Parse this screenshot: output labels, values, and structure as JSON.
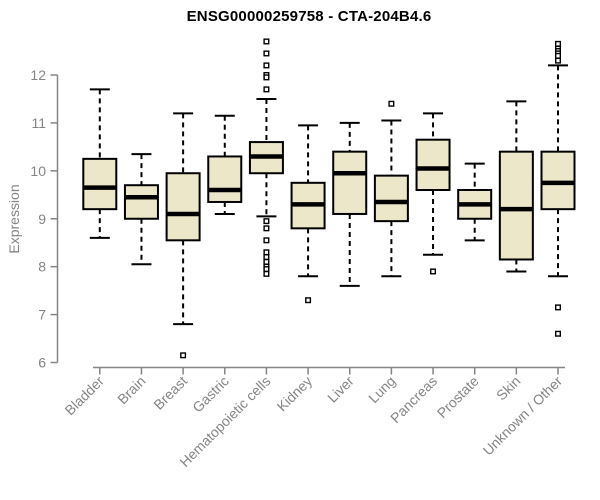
{
  "chart_data": {
    "type": "boxplot",
    "title": "ENSG00000259758 - CTA-204B4.6",
    "ylabel": "Expression",
    "xlabel": "",
    "ylim": [
      6,
      12.8
    ],
    "yticks": [
      6,
      7,
      8,
      9,
      10,
      11,
      12
    ],
    "grid": false,
    "legend": false,
    "colors": {
      "box_fill": "#ECE7C8",
      "box_stroke": "#000000",
      "median": "#000000",
      "axis": "#858585",
      "tick_label": "#858585",
      "title": "#000000",
      "outlier_fill": "#ffffff"
    },
    "categories": [
      "Bladder",
      "Brain",
      "Breast",
      "Gastric",
      "Hematopoietic cells",
      "Kidney",
      "Liver",
      "Lung",
      "Pancreas",
      "Prostate",
      "Skin",
      "Unknown / Other"
    ],
    "series": [
      {
        "category": "Bladder",
        "low": 8.6,
        "q1": 9.2,
        "median": 9.65,
        "q3": 10.25,
        "high": 11.7,
        "outliers": []
      },
      {
        "category": "Brain",
        "low": 8.05,
        "q1": 9.0,
        "median": 9.45,
        "q3": 9.7,
        "high": 10.35,
        "outliers": []
      },
      {
        "category": "Breast",
        "low": 6.8,
        "q1": 8.55,
        "median": 9.1,
        "q3": 9.95,
        "high": 11.2,
        "outliers": [
          6.15
        ]
      },
      {
        "category": "Gastric",
        "low": 9.1,
        "q1": 9.35,
        "median": 9.6,
        "q3": 10.3,
        "high": 11.15,
        "outliers": []
      },
      {
        "category": "Hematopoietic cells",
        "low": 9.05,
        "q1": 9.95,
        "median": 10.3,
        "q3": 10.6,
        "high": 11.5,
        "outliers": [
          12.7,
          12.45,
          12.2,
          12.0,
          11.95,
          11.7,
          8.95,
          8.8,
          8.55,
          8.3,
          8.2,
          8.1,
          8.0,
          7.95,
          7.85
        ]
      },
      {
        "category": "Kidney",
        "low": 7.8,
        "q1": 8.8,
        "median": 9.3,
        "q3": 9.75,
        "high": 10.95,
        "outliers": [
          7.3
        ]
      },
      {
        "category": "Liver",
        "low": 7.6,
        "q1": 9.1,
        "median": 9.95,
        "q3": 10.4,
        "high": 11.0,
        "outliers": []
      },
      {
        "category": "Lung",
        "low": 7.8,
        "q1": 8.95,
        "median": 9.35,
        "q3": 9.9,
        "high": 11.05,
        "outliers": [
          11.4
        ]
      },
      {
        "category": "Pancreas",
        "low": 8.25,
        "q1": 9.6,
        "median": 10.05,
        "q3": 10.65,
        "high": 11.2,
        "outliers": [
          7.9
        ]
      },
      {
        "category": "Prostate",
        "low": 8.55,
        "q1": 9.0,
        "median": 9.3,
        "q3": 9.6,
        "high": 10.15,
        "outliers": []
      },
      {
        "category": "Skin",
        "low": 7.9,
        "q1": 8.15,
        "median": 9.2,
        "q3": 10.4,
        "high": 11.45,
        "outliers": []
      },
      {
        "category": "Unknown / Other",
        "low": 7.8,
        "q1": 9.2,
        "median": 9.75,
        "q3": 10.4,
        "high": 12.2,
        "outliers": [
          12.65,
          12.55,
          12.5,
          12.45,
          12.4,
          12.3,
          7.15,
          6.6
        ]
      }
    ]
  }
}
